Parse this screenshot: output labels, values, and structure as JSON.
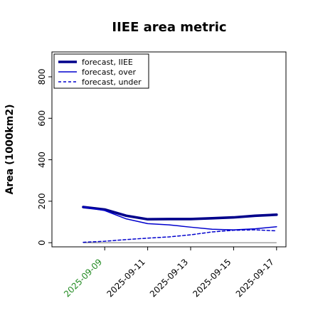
{
  "chart_data": {
    "type": "line",
    "title": "IIEE area metric",
    "xlabel": "",
    "ylabel": "Area (1000km2)",
    "ylim": [
      -20,
      920
    ],
    "x": [
      "2025-09-08",
      "2025-09-09",
      "2025-09-10",
      "2025-09-11",
      "2025-09-12",
      "2025-09-13",
      "2025-09-14",
      "2025-09-15",
      "2025-09-16",
      "2025-09-17"
    ],
    "x_ticks": [
      "2025-09-09",
      "2025-09-11",
      "2025-09-13",
      "2025-09-15",
      "2025-09-17"
    ],
    "highlight_tick": "2025-09-09",
    "highlight_color": "#228B22",
    "y_ticks": [
      0,
      200,
      400,
      600,
      800
    ],
    "line_color": "#00008B",
    "grid": false,
    "legend_position": "upper-left",
    "series": [
      {
        "name": "forecast, IIEE",
        "style": "thick",
        "values": [
          172,
          160,
          130,
          113,
          114,
          114,
          118,
          122,
          130,
          135
        ]
      },
      {
        "name": "forecast, over",
        "style": "thin",
        "values": [
          172,
          155,
          115,
          92,
          86,
          75,
          65,
          62,
          67,
          77
        ]
      },
      {
        "name": "forecast, under",
        "style": "dashed",
        "values": [
          2,
          7,
          15,
          22,
          28,
          38,
          52,
          60,
          62,
          57
        ]
      }
    ]
  }
}
